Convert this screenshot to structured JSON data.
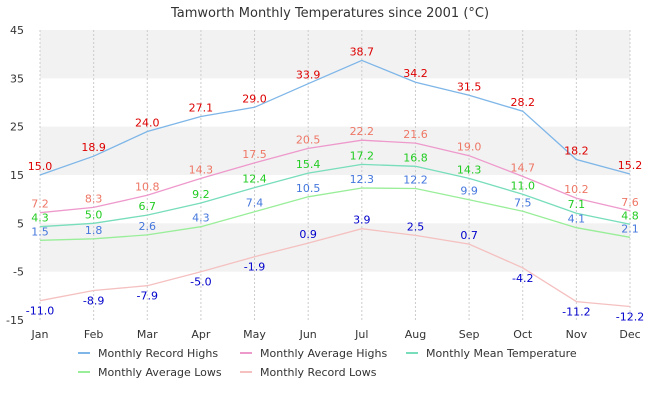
{
  "chart_data": {
    "type": "line",
    "title": "Tamworth Monthly Temperatures since 2001 (°C)",
    "xlabel": "",
    "ylabel": "",
    "categories": [
      "Jan",
      "Feb",
      "Mar",
      "Apr",
      "May",
      "Jun",
      "Jul",
      "Aug",
      "Sep",
      "Oct",
      "Nov",
      "Dec"
    ],
    "ylim": [
      -15,
      45
    ],
    "yticks": [
      "45",
      "35",
      "25",
      "15",
      "5",
      "-5",
      "-15"
    ],
    "grid": true,
    "legend_position": "bottom",
    "series": [
      {
        "name": "Monthly Record Highs",
        "color": "#7eb6e8",
        "label_color": "#dd0000",
        "values": [
          15.0,
          18.9,
          24.0,
          27.1,
          29.0,
          33.9,
          38.7,
          34.2,
          31.5,
          28.2,
          18.2,
          15.2
        ],
        "labels": [
          "15.0",
          "18.9",
          "24.0",
          "27.1",
          "29.0",
          "33.9",
          "38.7",
          "34.2",
          "31.5",
          "28.2",
          "18.2",
          "15.2"
        ]
      },
      {
        "name": "Monthly Average Highs",
        "color": "#ee99cc",
        "label_color": "#ee7766",
        "values": [
          7.2,
          8.3,
          10.8,
          14.3,
          17.5,
          20.5,
          22.2,
          21.6,
          19.0,
          14.7,
          10.2,
          7.6
        ],
        "labels": [
          "7.2",
          "8.3",
          "10.8",
          "14.3",
          "17.5",
          "20.5",
          "22.2",
          "21.6",
          "19.0",
          "14.7",
          "10.2",
          "7.6"
        ]
      },
      {
        "name": "Monthly Mean Temperature",
        "color": "#77ddbb",
        "label_color": "#22cc22",
        "values": [
          4.3,
          5.0,
          6.7,
          9.2,
          12.4,
          15.4,
          17.2,
          16.8,
          14.3,
          11.0,
          7.1,
          4.8
        ],
        "labels": [
          "4.3",
          "5.0",
          "6.7",
          "9.2",
          "12.4",
          "15.4",
          "17.2",
          "16.8",
          "14.3",
          "11.0",
          "7.1",
          "4.8"
        ]
      },
      {
        "name": "Monthly Average Lows",
        "color": "#99ee99",
        "label_color": "#4477dd",
        "values": [
          1.5,
          1.8,
          2.6,
          4.3,
          7.4,
          10.5,
          12.3,
          12.2,
          9.9,
          7.5,
          4.1,
          2.1
        ],
        "labels": [
          "1.5",
          "1.8",
          "2.6",
          "4.3",
          "7.4",
          "10.5",
          "12.3",
          "12.2",
          "9.9",
          "7.5",
          "4.1",
          "2.1"
        ]
      },
      {
        "name": "Monthly Record Lows",
        "color": "#f5c0c0",
        "label_color": "#0000cc",
        "values": [
          -11.0,
          -8.9,
          -7.9,
          -5.0,
          -1.9,
          0.9,
          3.9,
          2.5,
          0.7,
          -4.2,
          -11.2,
          -12.2
        ],
        "labels": [
          "-11.0",
          "-8.9",
          "-7.9",
          "-5.0",
          "-1.9",
          "0.9",
          "3.9",
          "2.5",
          "0.7",
          "-4.2",
          "-11.2",
          "-12.2"
        ]
      }
    ]
  },
  "colors": {
    "band": "#f2f2f2",
    "grid": "#cccccc",
    "axis_text": "#333333",
    "title_text": "#333333"
  }
}
